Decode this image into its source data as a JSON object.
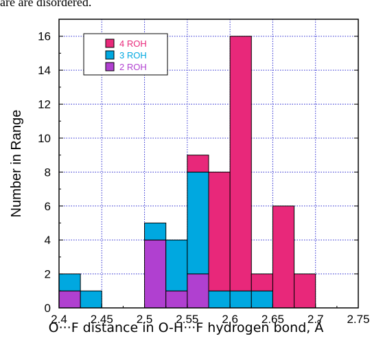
{
  "header": {
    "caption_fragment": "are are disordered."
  },
  "chart_data": {
    "type": "bar",
    "stacked": true,
    "xlabel": "O···F distance in O-H···F hydrogen bond, Å",
    "ylabel": "Number in Range",
    "xlim": [
      2.4,
      2.75
    ],
    "ylim": [
      0,
      17
    ],
    "xticks": [
      "2.4",
      "2.45",
      "2.5",
      "2.55",
      "2.6",
      "2.65",
      "2.7",
      "2.75"
    ],
    "yticks": [
      "0",
      "2",
      "4",
      "6",
      "8",
      "10",
      "12",
      "14",
      "16"
    ],
    "bin_width": 0.025,
    "bin_starts": [
      2.4,
      2.425,
      2.45,
      2.475,
      2.5,
      2.525,
      2.55,
      2.575,
      2.6,
      2.625,
      2.65,
      2.675,
      2.7
    ],
    "series": [
      {
        "name": "2 ROH",
        "color": "#b040d0",
        "values": [
          1,
          0,
          0,
          0,
          4,
          1,
          2,
          0,
          0,
          0,
          0,
          0,
          0
        ]
      },
      {
        "name": "3 ROH",
        "color": "#00a8e0",
        "values": [
          1,
          1,
          0,
          0,
          1,
          3,
          6,
          1,
          1,
          1,
          0,
          0,
          0
        ]
      },
      {
        "name": "4 ROH",
        "color": "#e8287a",
        "values": [
          0,
          0,
          0,
          0,
          0,
          0,
          1,
          7,
          15,
          1,
          6,
          2,
          0
        ]
      }
    ],
    "legend": {
      "position": "top-left",
      "order": [
        "4 ROH",
        "3 ROH",
        "2 ROH"
      ]
    },
    "grid": true,
    "grid_color": "#2a2ad0"
  }
}
